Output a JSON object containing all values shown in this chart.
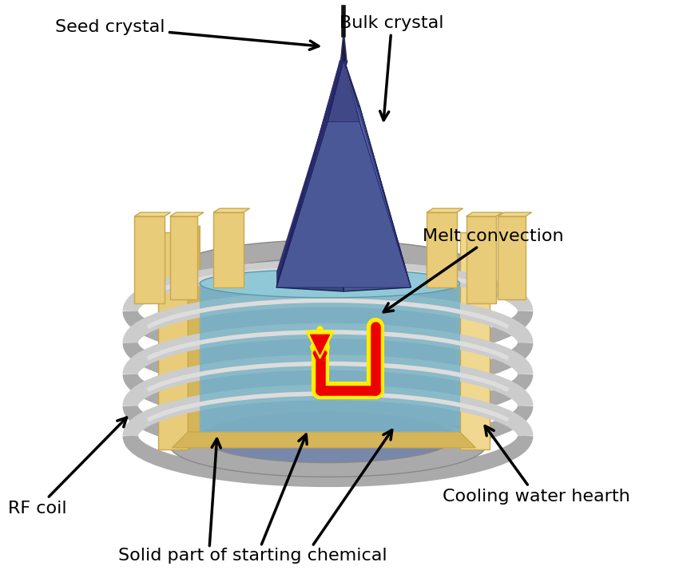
{
  "bg_color": "#ffffff",
  "crystal_color_dark": "#2c3070",
  "crystal_color_mid": "#3d4a8c",
  "crystal_color_light": "#5a6aaa",
  "crystal_color_face": "#4a5898",
  "gold_dark": "#c8a84b",
  "gold_mid": "#d4b55a",
  "gold_light": "#e8cc7a",
  "gold_lighter": "#f0d890",
  "silver_dark": "#888888",
  "silver_mid": "#aaaaaa",
  "silver_light": "#cccccc",
  "melt_color": "#7ab8c8",
  "melt_light": "#a0d0e0",
  "arrow_red": "#ee0000",
  "arrow_yellow": "#ffee00",
  "labels": {
    "seed_crystal": "Seed crystal",
    "bulk_crystal": "Bulk crystal",
    "melt_convection": "Melt convection",
    "rf_coil": "RF coil",
    "solid_part": "Solid part of starting chemical",
    "cooling_water": "Cooling water hearth"
  },
  "label_fontsize": 16,
  "figsize": [
    8.5,
    7.24
  ],
  "dpi": 100
}
